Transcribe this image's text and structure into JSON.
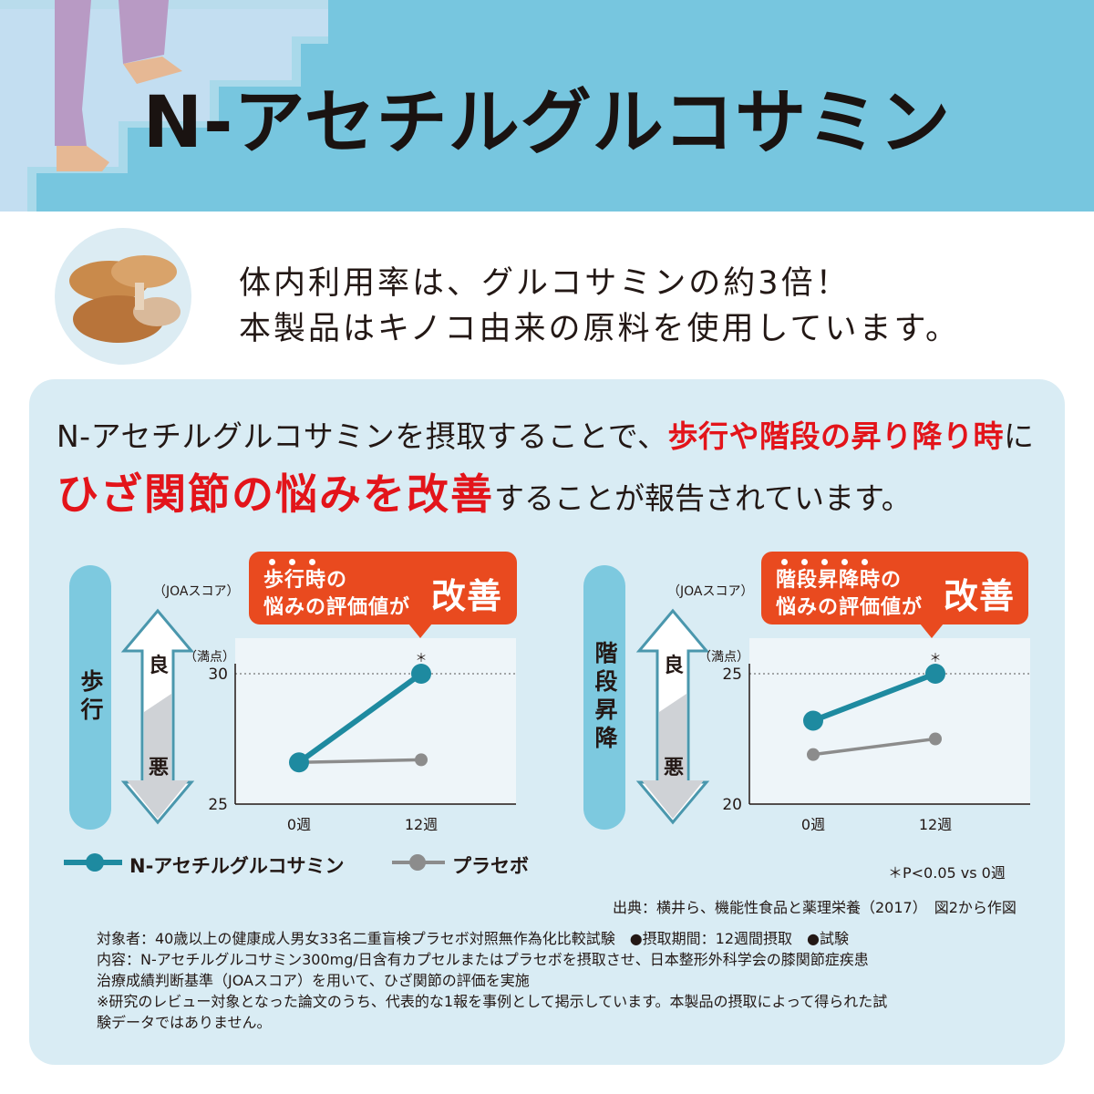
{
  "title": "N-アセチルグルコサミン",
  "intro": {
    "line1": "体内利用率は、グルコサミンの約3倍！",
    "line2": "本製品はキノコ由来の原料を使用しています。"
  },
  "headline": {
    "line1_plain": "N-アセチルグルコサミンを摂取することで、",
    "line1_red": "歩行や階段の昇り降り時",
    "line1_end": "に",
    "line2_red": "ひざ関節の悩みを改善",
    "line2_plain": "することが報告されています。"
  },
  "scale": {
    "unit": "（JOAスコア）",
    "full": "（満点）",
    "good": "良",
    "bad": "悪"
  },
  "callouts": {
    "walking": {
      "line1": "歩行時の",
      "line2": "悩みの評価値が",
      "big": "改善"
    },
    "stairs": {
      "line1": "階段昇降時の",
      "line2": "悩みの評価値が",
      "big": "改善"
    }
  },
  "legend": {
    "nag": "N-アセチルグルコサミン",
    "placebo": "プラセボ"
  },
  "significance": "＊P<0.05 vs 0週",
  "source": "出典：横井ら、機能性食品と薬理栄養（2017）　図2から作図",
  "notes": [
    "対象者：40歳以上の健康成人男女33名二重盲検プラセボ対照無作為化比較試験　●摂取期間：12週間摂取　●試験",
    "内容：N-アセチルグルコサミン300mg/日含有カプセルまたはプラセボを摂取させ、日本整形外科学会の膝関節症疾患",
    "治療成績判断基準（JOAスコア）を用いて、ひざ関節の評価を実施",
    "※研究のレビュー対象となった論文のうち、代表的な1報を事例として掲示しています。本製品の摂取によって得られた試",
    "験データではありません。"
  ],
  "colors": {
    "nag": "#1e8aa0",
    "placebo": "#8c8c8c",
    "accent": "#e94a1f",
    "header": "#77c6df"
  },
  "chart_data": [
    {
      "type": "line",
      "label": "歩行",
      "categories": [
        "0週",
        "12週"
      ],
      "ylim": [
        25,
        30
      ],
      "yticks": [
        "25",
        "30"
      ],
      "series": [
        {
          "name": "N-アセチルグルコサミン",
          "values": [
            26.6,
            30
          ]
        },
        {
          "name": "プラセボ",
          "values": [
            26.6,
            26.7
          ]
        }
      ],
      "annotation": "＊"
    },
    {
      "type": "line",
      "label": "階段昇降",
      "categories": [
        "0週",
        "12週"
      ],
      "ylim": [
        20,
        25
      ],
      "yticks": [
        "20",
        "25"
      ],
      "series": [
        {
          "name": "N-アセチルグルコサミン",
          "values": [
            23.2,
            25
          ]
        },
        {
          "name": "プラセボ",
          "values": [
            21.9,
            22.5
          ]
        }
      ],
      "annotation": "＊"
    }
  ]
}
